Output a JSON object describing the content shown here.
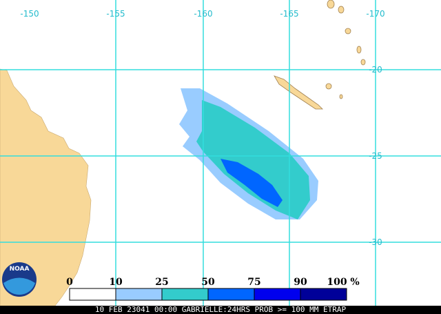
{
  "map": {
    "lon_labels": [
      "-150",
      "-155",
      "-160",
      "-165",
      "-170"
    ],
    "lat_labels": [
      "-20",
      "-25",
      "-30"
    ]
  },
  "logo": "NOAA",
  "legend": {
    "labels": [
      "0",
      "10",
      "25",
      "50",
      "75",
      "90",
      "100"
    ],
    "unit": "%",
    "colors": [
      "#ffffff",
      "#99ccff",
      "#33cccc",
      "#0066ff",
      "#0000ee",
      "#000099"
    ]
  },
  "caption": "10 FEB 23041 00:00 GABRIELLE:24HRS PROB >= 100 MM ETRAP"
}
